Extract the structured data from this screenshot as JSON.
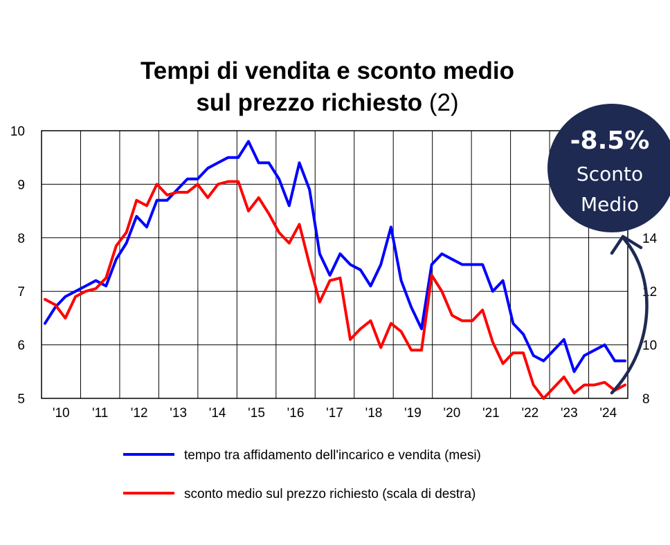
{
  "chart_data": {
    "type": "line",
    "title_line1": "Tempi di vendita e sconto medio",
    "title_line2": "sul prezzo richiesto",
    "title_suffix": "(2)",
    "x_tick_labels": [
      "'10",
      "'11",
      "'12",
      "'13",
      "'14",
      "'15",
      "'16",
      "'17",
      "'18",
      "'19",
      "'20",
      "'21",
      "'22",
      "'23",
      "'24"
    ],
    "y_left": {
      "min": 5,
      "max": 10,
      "ticks": [
        5,
        6,
        7,
        8,
        9,
        10
      ]
    },
    "y_right": {
      "min": 8,
      "max": 18,
      "visible_ticks": [
        8,
        10,
        12,
        14
      ]
    },
    "grid": true,
    "legend_position": "bottom",
    "series": [
      {
        "name": "tempo tra affidamento dell'incarico e vendita (mesi)",
        "axis": "left",
        "color": "#0000ff",
        "values": [
          6.4,
          6.7,
          6.9,
          7.0,
          7.1,
          7.2,
          7.1,
          7.6,
          7.9,
          8.4,
          8.2,
          8.7,
          8.7,
          8.9,
          9.1,
          9.1,
          9.3,
          9.4,
          9.5,
          9.5,
          9.8,
          9.4,
          9.4,
          9.1,
          8.6,
          9.4,
          8.9,
          7.7,
          7.3,
          7.7,
          7.5,
          7.4,
          7.1,
          7.5,
          8.2,
          7.2,
          6.7,
          6.3,
          7.5,
          7.7,
          7.6,
          7.5,
          7.5,
          7.5,
          7.0,
          7.2,
          6.4,
          6.2,
          5.8,
          5.7,
          5.9,
          6.1,
          5.5,
          5.8,
          5.9,
          6.0,
          5.7,
          5.7
        ]
      },
      {
        "name": "sconto medio sul prezzo richiesto (scala di destra)",
        "axis": "right",
        "color": "#ff0000",
        "values": [
          11.7,
          11.5,
          11.0,
          11.8,
          12.0,
          12.1,
          12.5,
          13.7,
          14.2,
          15.4,
          15.2,
          16.0,
          15.6,
          15.7,
          15.7,
          16.0,
          15.5,
          16.0,
          16.1,
          16.1,
          15.0,
          15.5,
          14.9,
          14.2,
          13.8,
          14.5,
          13.0,
          11.6,
          12.4,
          12.5,
          10.2,
          10.6,
          10.9,
          9.9,
          10.8,
          10.5,
          9.8,
          9.8,
          12.6,
          12.0,
          11.1,
          10.9,
          10.9,
          11.3,
          10.1,
          9.3,
          9.7,
          9.7,
          8.5,
          8.0,
          8.4,
          8.8,
          8.2,
          8.5,
          8.5,
          8.6,
          8.3,
          8.5
        ]
      }
    ]
  },
  "badge": {
    "value": "-8.5%",
    "label": "Sconto Medio",
    "color": "#1e2a52"
  }
}
